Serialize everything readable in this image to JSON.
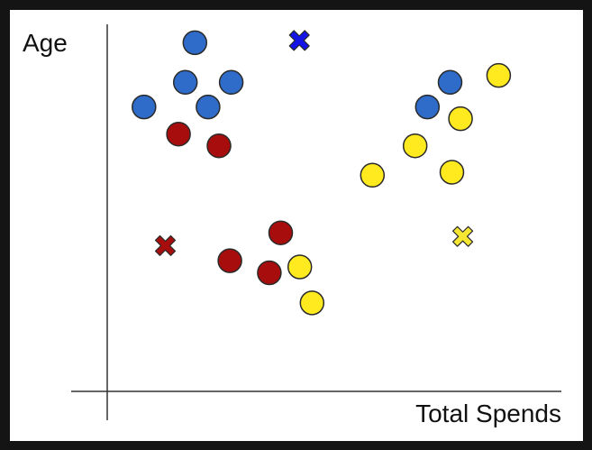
{
  "chart_data": {
    "type": "scatter",
    "title": "",
    "xlabel": "Total Spends",
    "ylabel": "Age",
    "xlim": [
      0,
      100
    ],
    "ylim": [
      0,
      100
    ],
    "grid": false,
    "legend": "none",
    "colors": {
      "blue": "#2f6bc8",
      "red": "#a80d0d",
      "yellow": "#ffea1f",
      "blue_centroid": "#1414e6",
      "red_centroid": "#a80d0d",
      "yellow_centroid": "#f6e634",
      "outline": "#2a2a2a"
    },
    "series": [
      {
        "color": "blue",
        "x": [
          19.3,
          17.2,
          27.3,
          8.1,
          22.2,
          75.5,
          70.5
        ],
        "y": [
          95.0,
          84.2,
          84.2,
          77.5,
          77.5,
          84.2,
          77.5
        ]
      },
      {
        "color": "red",
        "x": [
          15.7,
          24.6,
          27.0,
          38.2,
          35.7
        ],
        "y": [
          70.1,
          66.9,
          35.6,
          43.2,
          32.3
        ]
      },
      {
        "color": "yellow",
        "x": [
          86.2,
          77.8,
          67.8,
          58.4,
          75.9,
          42.4,
          45.1
        ],
        "y": [
          86.1,
          74.3,
          66.9,
          58.9,
          59.7,
          33.9,
          24.1
        ]
      }
    ],
    "centroids": [
      {
        "color": "blue_centroid",
        "x": 42.3,
        "y": 95.6
      },
      {
        "color": "red_centroid",
        "x": 12.8,
        "y": 39.7
      },
      {
        "color": "yellow_centroid",
        "x": 78.3,
        "y": 42.2
      }
    ]
  }
}
